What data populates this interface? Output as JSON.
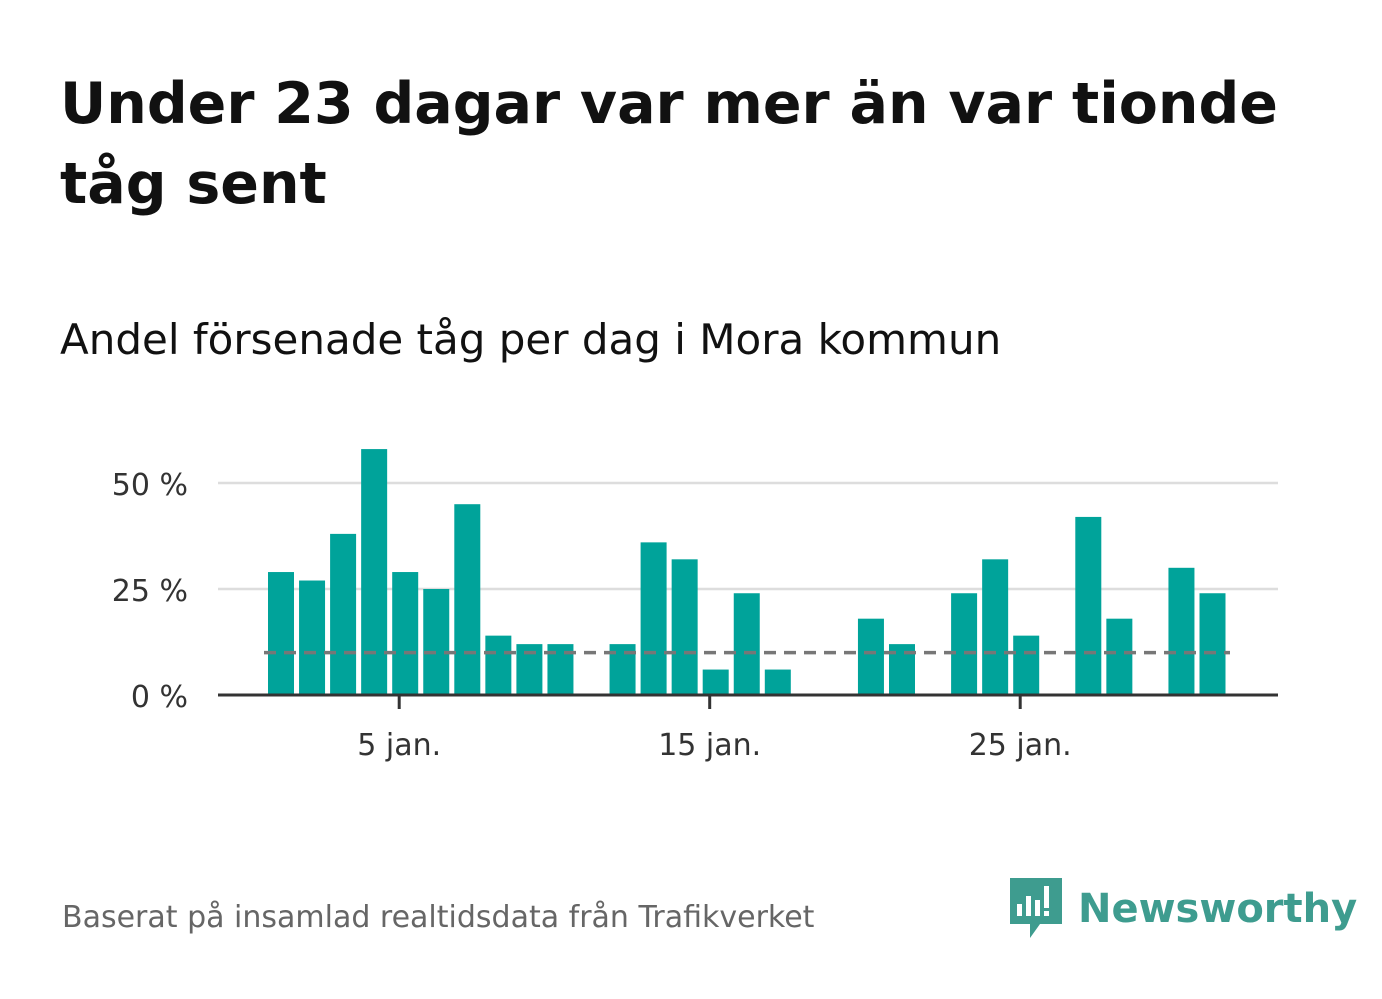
{
  "title": "Under 23 dagar var mer än var tionde tåg sent",
  "subtitle": "Andel försenade tåg per dag i Mora kommun",
  "footer": "Baserat på insamlad realtidsdata från Trafikverket",
  "brand": "Newsworthy",
  "colors": {
    "bar": "#00a39a",
    "reference_line": "#777777",
    "grid": "#dddddd",
    "axis": "#333333",
    "brand": "#3e9c8f",
    "footer_text": "#666666"
  },
  "chart_data": {
    "type": "bar",
    "x": [
      "1 jan.",
      "2 jan.",
      "3 jan.",
      "4 jan.",
      "5 jan.",
      "6 jan.",
      "7 jan.",
      "8 jan.",
      "9 jan.",
      "10 jan.",
      "11 jan.",
      "12 jan.",
      "13 jan.",
      "14 jan.",
      "15 jan.",
      "16 jan.",
      "17 jan.",
      "18 jan.",
      "19 jan.",
      "20 jan.",
      "21 jan.",
      "22 jan.",
      "23 jan.",
      "24 jan.",
      "25 jan.",
      "26 jan.",
      "27 jan.",
      "28 jan.",
      "29 jan.",
      "30 jan.",
      "31 jan."
    ],
    "values": [
      29,
      27,
      38,
      58,
      29,
      25,
      45,
      14,
      12,
      12,
      null,
      12,
      36,
      32,
      6,
      24,
      6,
      null,
      null,
      18,
      12,
      null,
      24,
      32,
      14,
      null,
      42,
      18,
      null,
      30,
      24
    ],
    "reference_line": 10,
    "xticks": [
      {
        "label": "5 jan.",
        "index": 4
      },
      {
        "label": "15 jan.",
        "index": 14
      },
      {
        "label": "25 jan.",
        "index": 24
      }
    ],
    "yticks": [
      {
        "label": "0 %",
        "value": 0
      },
      {
        "label": "25 %",
        "value": 25
      },
      {
        "label": "50 %",
        "value": 50
      }
    ],
    "ylim": [
      0,
      58
    ],
    "grid": true,
    "legend": "none"
  }
}
